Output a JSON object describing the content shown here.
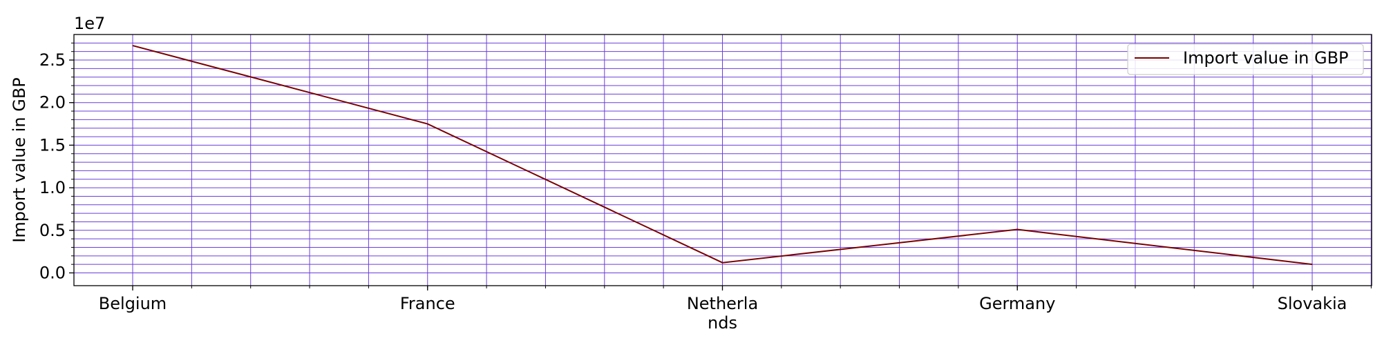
{
  "chart_data": {
    "type": "line",
    "categories": [
      "Belgium",
      "France",
      "Netherla\nnds",
      "Germany",
      "Slovakia"
    ],
    "series": [
      {
        "name": "Import value in GBP",
        "values": [
          26700000,
          17500000,
          1200000,
          5100000,
          1000000
        ],
        "color": "#7b0000"
      }
    ],
    "xlabel": "",
    "ylabel": "Import value in GBP",
    "ylim": [
      -0.15,
      2.8
    ],
    "y_ticks": [
      "0.0",
      "0.5",
      "1.0",
      "1.5",
      "2.0",
      "2.5"
    ],
    "y_tick_values": [
      0,
      0.5,
      1.0,
      1.5,
      2.0,
      2.5
    ],
    "y_multiplier": "1e7",
    "grid": true,
    "grid_color": "#6a3ddc",
    "legend_position": "upper right"
  }
}
